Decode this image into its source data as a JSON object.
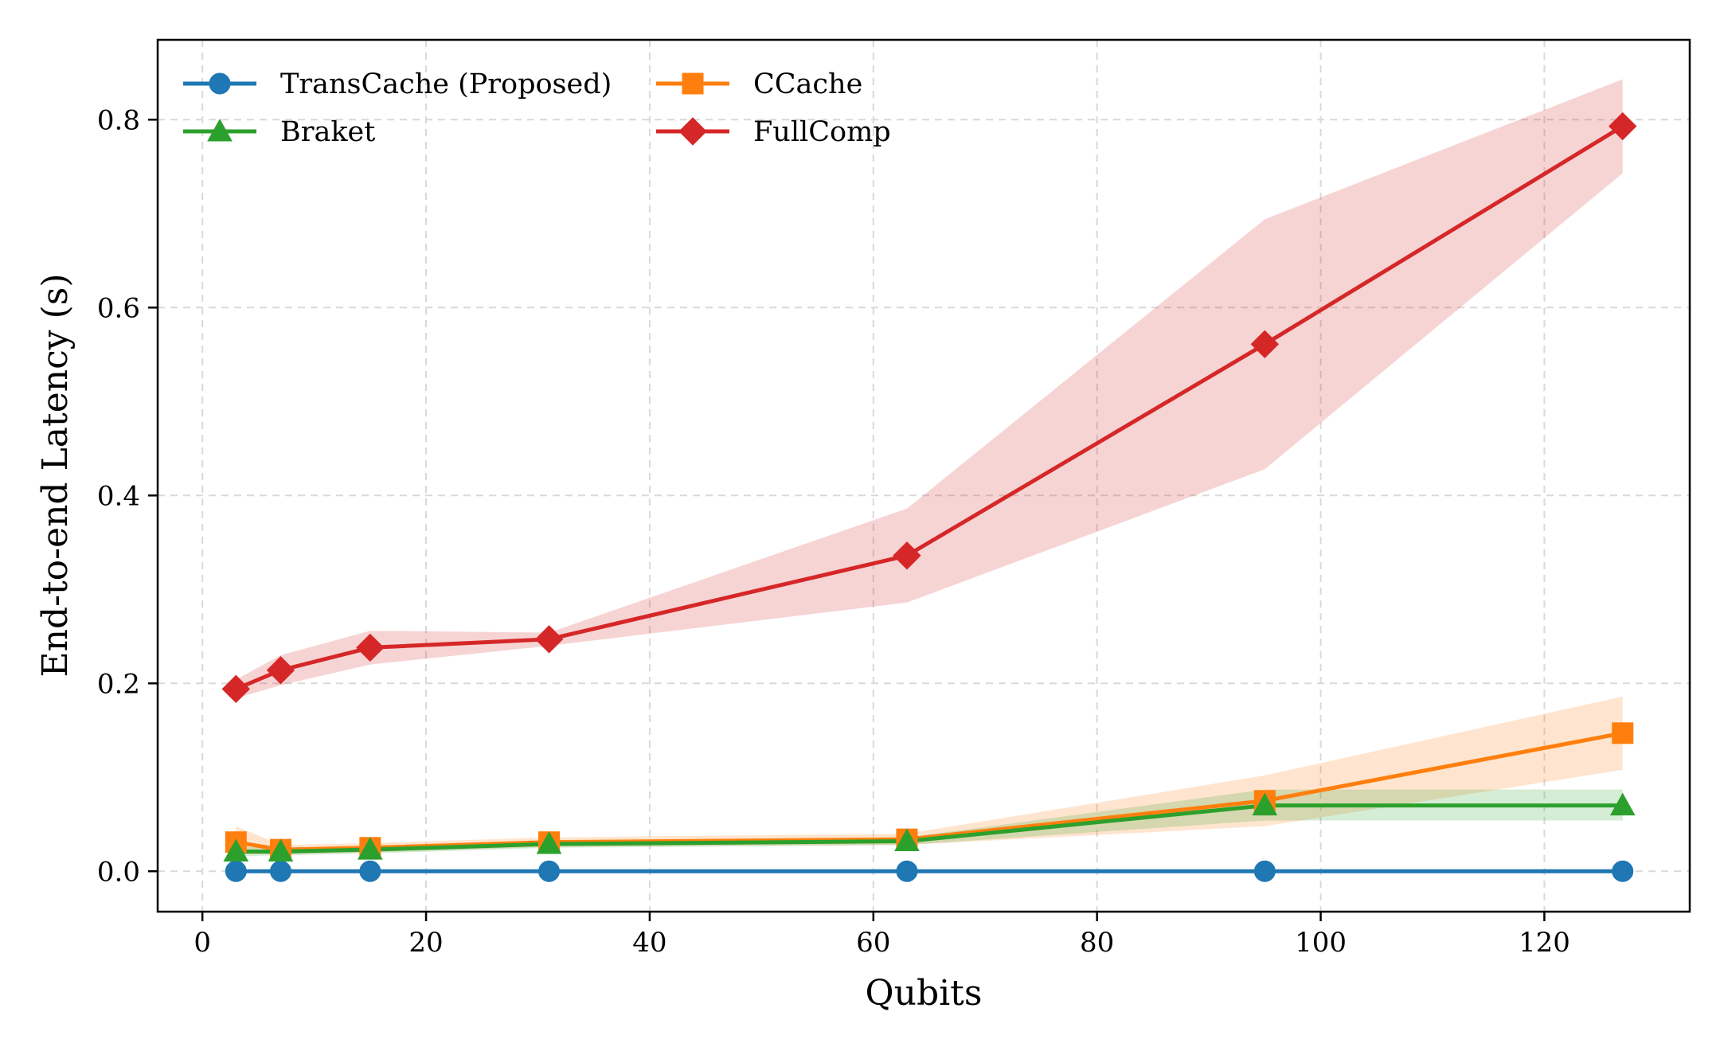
{
  "chart_data": {
    "type": "line",
    "title": "",
    "xlabel": "Qubits",
    "ylabel": "End-to-end Latency (s)",
    "xlim": [
      -4,
      133
    ],
    "ylim": [
      -0.043,
      0.885
    ],
    "xticks": [
      0,
      20,
      40,
      60,
      80,
      100,
      120
    ],
    "yticks": [
      0.0,
      0.2,
      0.4,
      0.6,
      0.8
    ],
    "xtick_labels": [
      "0",
      "20",
      "40",
      "60",
      "80",
      "100",
      "120"
    ],
    "ytick_labels": [
      "0.0",
      "0.2",
      "0.4",
      "0.6",
      "0.8"
    ],
    "grid": true,
    "legend_position": "top-left",
    "x": [
      3,
      7,
      15,
      31,
      63,
      95,
      127
    ],
    "series": [
      {
        "name": "TransCache (Proposed)",
        "color": "#1f77b4",
        "marker": "circle",
        "values": [
          0.0,
          0.0,
          0.0,
          0.0,
          0.0,
          0.0,
          0.0
        ],
        "lower": [
          0.0,
          0.0,
          0.0,
          0.0,
          0.0,
          0.0,
          0.0
        ],
        "upper": [
          0.0,
          0.0,
          0.0,
          0.0,
          0.0,
          0.0,
          0.0
        ]
      },
      {
        "name": "CCache",
        "color": "#ff7f0e",
        "marker": "square",
        "values": [
          0.031,
          0.023,
          0.025,
          0.031,
          0.034,
          0.075,
          0.147
        ],
        "lower": [
          0.018,
          0.018,
          0.02,
          0.026,
          0.028,
          0.048,
          0.108
        ],
        "upper": [
          0.048,
          0.028,
          0.03,
          0.036,
          0.04,
          0.102,
          0.186
        ]
      },
      {
        "name": "Braket",
        "color": "#2ca02c",
        "marker": "triangle",
        "values": [
          0.021,
          0.021,
          0.023,
          0.029,
          0.032,
          0.07,
          0.07
        ],
        "lower": [
          0.016,
          0.017,
          0.019,
          0.025,
          0.028,
          0.054,
          0.054
        ],
        "upper": [
          0.026,
          0.025,
          0.027,
          0.033,
          0.036,
          0.087,
          0.087
        ]
      },
      {
        "name": "FullComp",
        "color": "#d62728",
        "marker": "diamond",
        "values": [
          0.194,
          0.214,
          0.238,
          0.247,
          0.336,
          0.561,
          0.793
        ],
        "lower": [
          0.184,
          0.198,
          0.22,
          0.24,
          0.286,
          0.428,
          0.743
        ],
        "upper": [
          0.204,
          0.23,
          0.256,
          0.254,
          0.386,
          0.694,
          0.843
        ]
      }
    ]
  }
}
